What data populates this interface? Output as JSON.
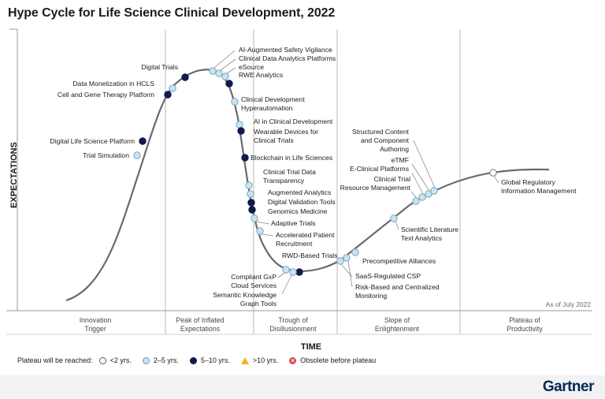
{
  "title": "Hype Cycle for Life Science Clinical Development, 2022",
  "chart_data": {
    "type": "scatter",
    "y_label": "EXPECTATIONS",
    "x_label": "TIME",
    "as_of": "As of July 2022",
    "phases": [
      "Innovation\nTrigger",
      "Peak of Inflated\nExpectations",
      "Trough of\nDisillusionment",
      "Slope of\nEnlightenment",
      "Plateau of\nProductivity"
    ],
    "plateau_categories": {
      "lt2": "<2 yrs.",
      "y2_5": "2–5 yrs.",
      "y5_10": "5–10 yrs.",
      "gt10": ">10 yrs.",
      "obsolete": "Obsolete before plateau"
    },
    "technologies": [
      {
        "name": "Trial Simulation",
        "plateau": "2-5"
      },
      {
        "name": "Digital Life Science Platform",
        "plateau": "5-10"
      },
      {
        "name": "Cell and Gene Therapy Platform",
        "plateau": "5-10"
      },
      {
        "name": "Data Monetization in HCLS",
        "plateau": "2-5"
      },
      {
        "name": "Digital Trials",
        "plateau": "5-10"
      },
      {
        "name": "AI-Augmented Safety Vigilance",
        "plateau": "2-5"
      },
      {
        "name": "Clinical Data Analytics Platforms",
        "plateau": "2-5"
      },
      {
        "name": "eSource",
        "plateau": "2-5"
      },
      {
        "name": "RWE Analytics",
        "plateau": "5-10"
      },
      {
        "name": "Clinical Development Hyperautomation",
        "plateau": "2-5"
      },
      {
        "name": "AI in Clinical Development",
        "plateau": "2-5"
      },
      {
        "name": "Wearable Devices for Clinical Trials",
        "plateau": "5-10"
      },
      {
        "name": "Blockchain in Life Sciences",
        "plateau": "5-10"
      },
      {
        "name": "Clinical Trial Data Transparency",
        "plateau": "2-5"
      },
      {
        "name": "Augmented Analytics",
        "plateau": "2-5"
      },
      {
        "name": "Digital Validation Tools",
        "plateau": "5-10"
      },
      {
        "name": "Genomics Medicine",
        "plateau": "5-10"
      },
      {
        "name": "Adaptive Trials",
        "plateau": "2-5"
      },
      {
        "name": "Accelerated Patient Recruitment",
        "plateau": "2-5"
      },
      {
        "name": "RWD-Based Trials",
        "plateau": "5-10"
      },
      {
        "name": "Compliant GxP Cloud Services",
        "plateau": "2-5"
      },
      {
        "name": "Semantic Knowledge Graph Tools",
        "plateau": "2-5"
      },
      {
        "name": "SaaS-Regulated CSP",
        "plateau": "2-5"
      },
      {
        "name": "Risk-Based and Centralized Monitoring",
        "plateau": "2-5"
      },
      {
        "name": "Precompetitive Alliances",
        "plateau": "2-5"
      },
      {
        "name": "Scientific Literature Text Analytics",
        "plateau": "2-5"
      },
      {
        "name": "Clinical Trial Resource Management",
        "plateau": "2-5"
      },
      {
        "name": "E-Clinical Platforms",
        "plateau": "2-5"
      },
      {
        "name": "eTMF",
        "plateau": "2-5"
      },
      {
        "name": "Structured Content and Component Authoring",
        "plateau": "2-5"
      },
      {
        "name": "Global Regulatory Information Management",
        "plateau": "<2"
      }
    ]
  },
  "legend": {
    "title": "Plateau will be reached:",
    "items": [
      "<2 yrs.",
      "2–5 yrs.",
      "5–10 yrs.",
      ">10 yrs.",
      "Obsolete before plateau"
    ]
  },
  "brand": "Gartner",
  "colors": {
    "y5_10": "#101a4e",
    "y2_5": "#c8e4f0",
    "lt2": "#ffffff",
    "gt10": "#f2b51d",
    "obsolete": "#e04848",
    "curve": "#6a6a6a"
  }
}
